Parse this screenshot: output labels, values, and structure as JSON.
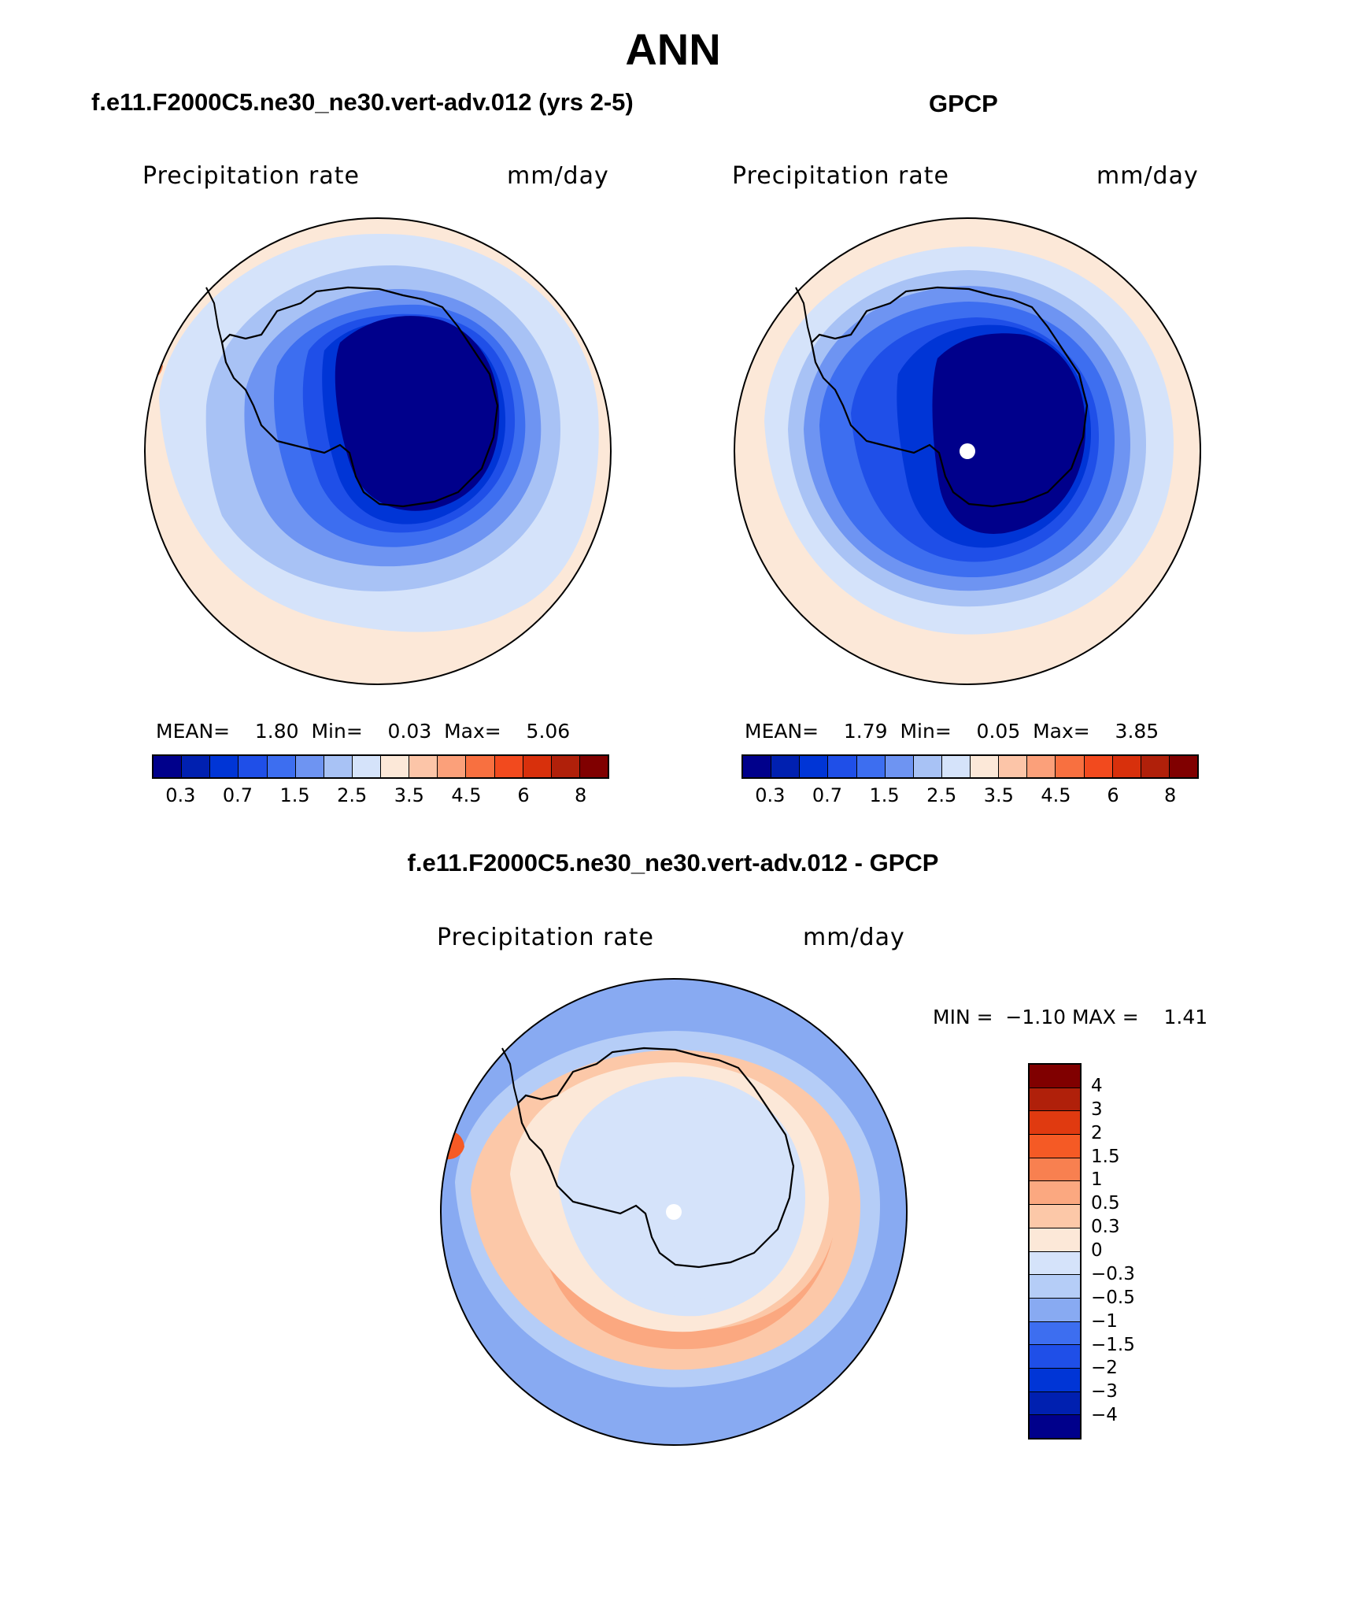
{
  "main_title": "ANN",
  "panels": {
    "model": {
      "subtitle": "f.e11.F2000C5.ne30_ne30.vert-adv.012 (yrs 2-5)",
      "var_label": "Precipitation rate",
      "units": "mm/day",
      "stats": "MEAN=    1.80  Min=    0.03  Max=    5.06"
    },
    "obs": {
      "subtitle": "GPCP",
      "var_label": "Precipitation rate",
      "units": "mm/day",
      "stats": "MEAN=    1.79  Min=    0.05  Max=    3.85"
    },
    "diff": {
      "subtitle": "f.e11.F2000C5.ne30_ne30.vert-adv.012 - GPCP",
      "var_label": "Precipitation rate",
      "units": "mm/day",
      "stats": "MIN =  −1.10 MAX =    1.41"
    }
  },
  "colorbar_abs": {
    "colors": [
      "#00008b",
      "#0020b0",
      "#0035d6",
      "#1f4fe8",
      "#3d6ef0",
      "#6e94f2",
      "#a8c2f5",
      "#d5e3fa",
      "#fce8d8",
      "#fcc5a8",
      "#fba07a",
      "#f87040",
      "#f24a1e",
      "#d8300c",
      "#b0200a",
      "#800000"
    ],
    "tick_labels": [
      "0.3",
      "0.7",
      "1.5",
      "2.5",
      "3.5",
      "4.5",
      "6",
      "8"
    ]
  },
  "colorbar_diff": {
    "colors": [
      "#800000",
      "#b0200a",
      "#e03a10",
      "#f55a25",
      "#f88050",
      "#fba880",
      "#fcc8a8",
      "#fce8d8",
      "#d5e3fa",
      "#b5cdf7",
      "#88aaf2",
      "#3d6ef0",
      "#1f4fe8",
      "#0035d6",
      "#0020b0",
      "#00008b"
    ],
    "tick_labels": [
      "4",
      "3",
      "2",
      "1.5",
      "1",
      "0.5",
      "0.3",
      "0",
      "−0.3",
      "−0.5",
      "−1",
      "−1.5",
      "−2",
      "−3",
      "−4"
    ]
  },
  "maps": {
    "model": {
      "zones": [
        "#fce8d8",
        "#d5e3fa",
        "#a8c2f5",
        "#6e94f2",
        "#3d6ef0",
        "#1f4fe8",
        "#0035d6",
        "#00008b"
      ]
    },
    "obs": {
      "zones": [
        "#fce8d8",
        "#d5e3fa",
        "#a8c2f5",
        "#6e94f2",
        "#3d6ef0",
        "#1f4fe8",
        "#0035d6",
        "#00008b"
      ]
    },
    "diff": {
      "zones": [
        "#88aaf2",
        "#b5cdf7",
        "#fcc8a8",
        "#fba880",
        "#fce8d8",
        "#d5e3fa",
        "#d5e3fa"
      ]
    }
  }
}
